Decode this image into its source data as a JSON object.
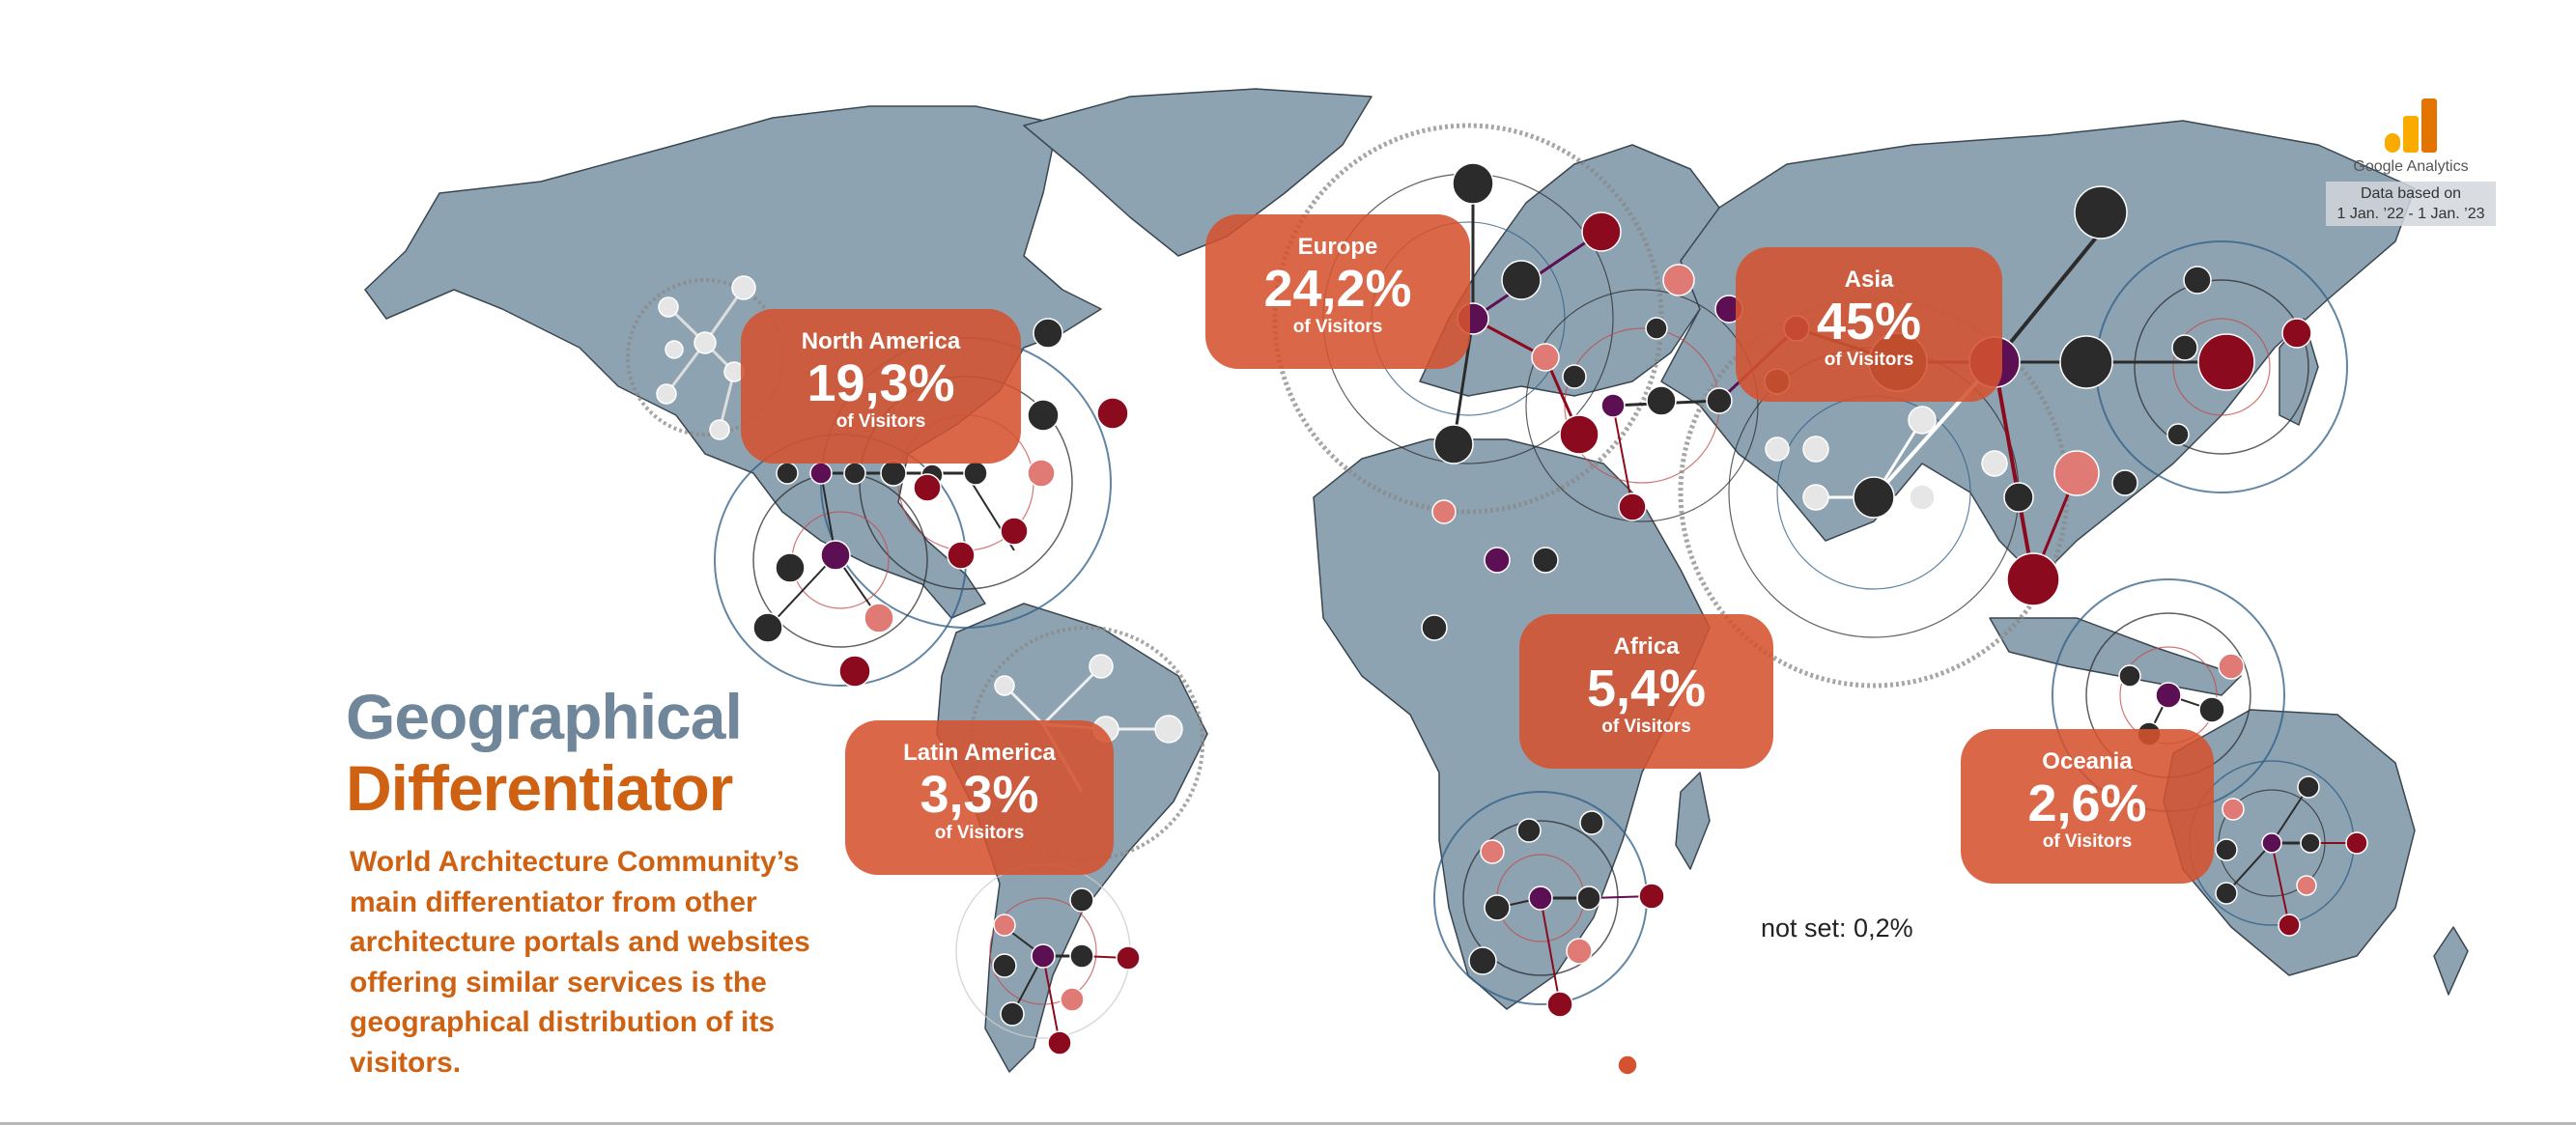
{
  "title": {
    "line1": "Geographical",
    "line2": "Differentiator"
  },
  "description": "World Architecture Community’s main differentiator from other architecture portals and websites offering similar services is the geographical distribution of its visitors.",
  "regions": [
    {
      "name": "North America",
      "percent": "19,3%",
      "label": "of Visitors"
    },
    {
      "name": "Europe",
      "percent": "24,2%",
      "label": "of Visitors"
    },
    {
      "name": "Asia",
      "percent": "45%",
      "label": "of Visitors"
    },
    {
      "name": "Latin America",
      "percent": "3,3%",
      "label": "of Visitors"
    },
    {
      "name": "Africa",
      "percent": "5,4%",
      "label": "of Visitors"
    },
    {
      "name": "Oceania",
      "percent": "2,6%",
      "label": "of Visitors"
    }
  ],
  "not_set": "not set: 0,2%",
  "source": {
    "name": "Google Analytics",
    "note_line1": "Data based on",
    "note_line2": "1 Jan. ’22 - 1 Jan. ’23"
  },
  "colors": {
    "land": "#8ea3b2",
    "border": "#3a4650",
    "card": "#d4522f",
    "title_gray": "#70869a",
    "title_orange": "#cf6212",
    "node_dark": "#2b2b2b",
    "node_red": "#8c0a1e",
    "node_purple": "#5c0f52",
    "node_pink": "#e07a74",
    "node_light": "#e6e6e6",
    "ring_blue": "#2d5d86",
    "ring_red": "#c24a4a"
  }
}
